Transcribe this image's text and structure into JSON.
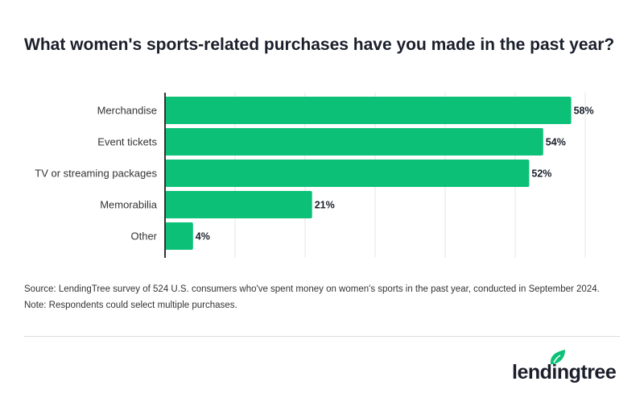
{
  "chart_data": {
    "type": "bar",
    "orientation": "horizontal",
    "title": "What women's sports-related purchases have you made in the past year?",
    "categories": [
      "Merchandise",
      "Event tickets",
      "TV or streaming packages",
      "Memorabilia",
      "Other"
    ],
    "values": [
      58,
      54,
      52,
      21,
      4
    ],
    "value_labels": [
      "58%",
      "54%",
      "52%",
      "21%",
      "4%"
    ],
    "xlim": [
      0,
      60
    ],
    "grid": true,
    "bar_color": "#0cc177"
  },
  "notes": {
    "source": "Source: LendingTree survey of 524 U.S. consumers who've spent money on women's sports in the past year, conducted in September 2024.",
    "note": "Note: Respondents could select multiple purchases."
  },
  "logo": {
    "text": "lendingtree",
    "color": "#0cc177"
  }
}
